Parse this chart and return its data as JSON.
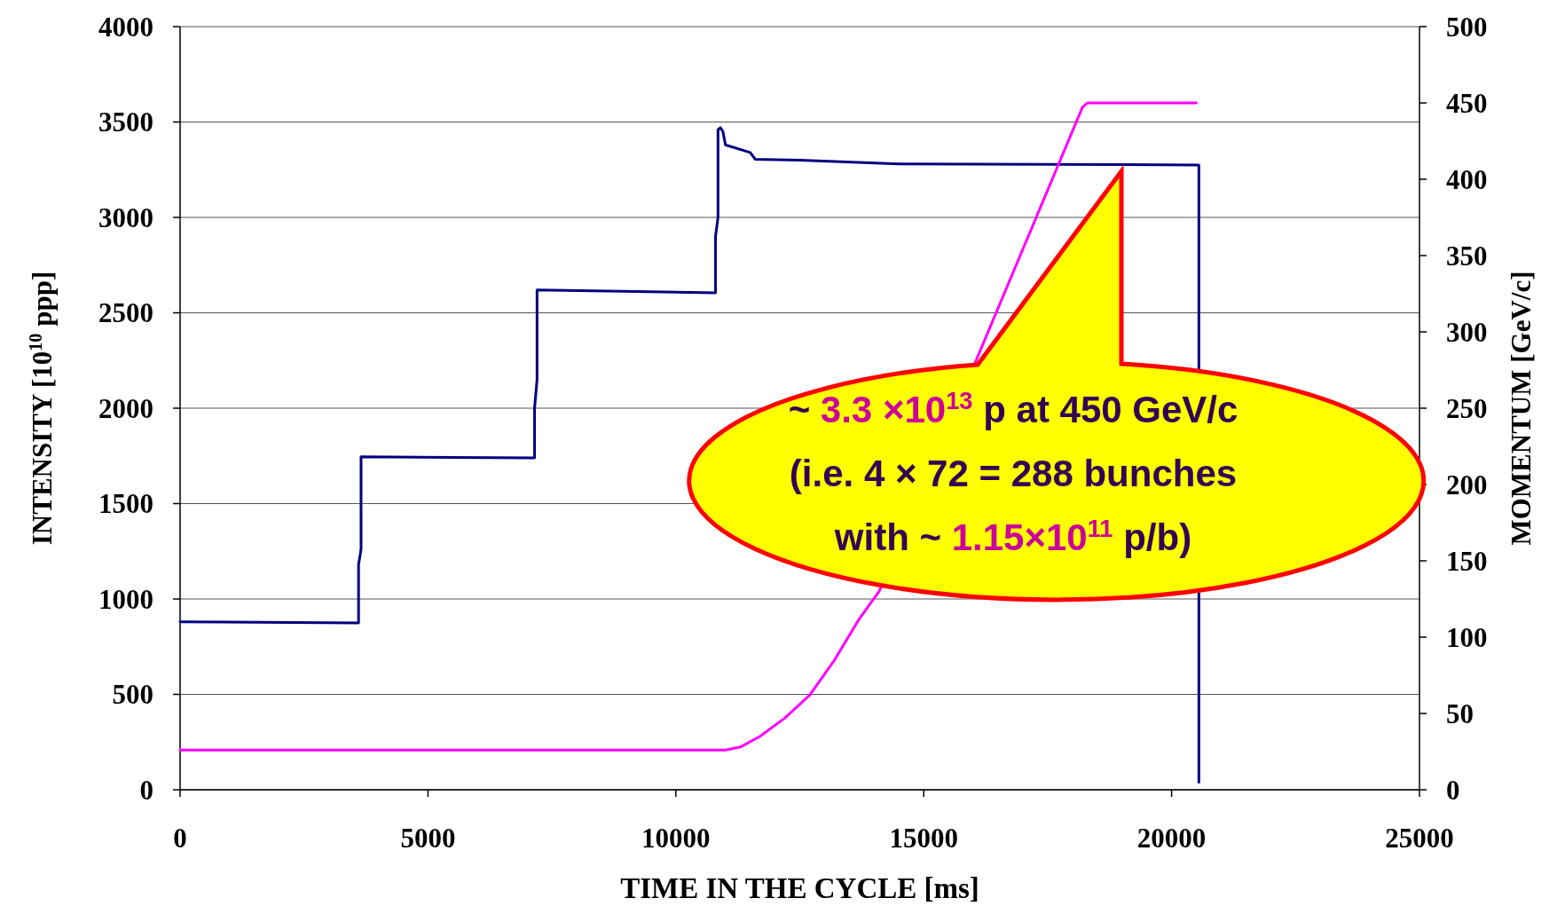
{
  "chart_data": {
    "type": "line",
    "xlabel": "TIME IN THE CYCLE [ms]",
    "ylabel": "INTENSITY [10$^{10}$ ppp]",
    "y2label": "MOMENTUM [GeV/c]",
    "xlim": [
      0,
      25000
    ],
    "xticks": [
      0,
      5000,
      10000,
      15000,
      20000,
      25000
    ],
    "ylim": [
      0,
      4000
    ],
    "yticks": [
      0,
      500,
      1000,
      1500,
      2000,
      2500,
      3000,
      3500,
      4000
    ],
    "y2lim": [
      0,
      500
    ],
    "y2ticks": [
      0,
      50,
      100,
      150,
      200,
      250,
      300,
      350,
      400,
      450,
      500
    ],
    "grid": "y",
    "series": [
      {
        "color": "#000080",
        "x": [
          0,
          3600,
          3600,
          3650,
          3650,
          7150,
          7150,
          7200,
          7200,
          10800,
          10800,
          10850,
          10850,
          10900,
          10950,
          11000,
          11500,
          11600,
          12500,
          14500,
          20550,
          20550
        ],
        "values": [
          880,
          875,
          1180,
          1260,
          1745,
          1740,
          2000,
          2150,
          2620,
          2605,
          2900,
          3000,
          3460,
          3470,
          3450,
          3380,
          3340,
          3305,
          3300,
          3280,
          3275,
          40
        ]
      },
      {
        "color": "#ff00ff",
        "axis": "y2",
        "x": [
          0,
          11000,
          11300,
          11700,
          12200,
          12700,
          13200,
          13700,
          14100,
          18200,
          18300,
          20500
        ],
        "values": [
          26,
          26,
          28,
          35,
          47,
          62,
          85,
          112,
          130,
          447,
          450,
          450
        ]
      }
    ],
    "annotations": [
      "~ 3.3 ×10$^{13}$ p at 450 GeV/c",
      "(i.e. 4 × 72 = 288 bunches",
      "with ~ 1.15×10$^{11}$ p/b)"
    ]
  }
}
